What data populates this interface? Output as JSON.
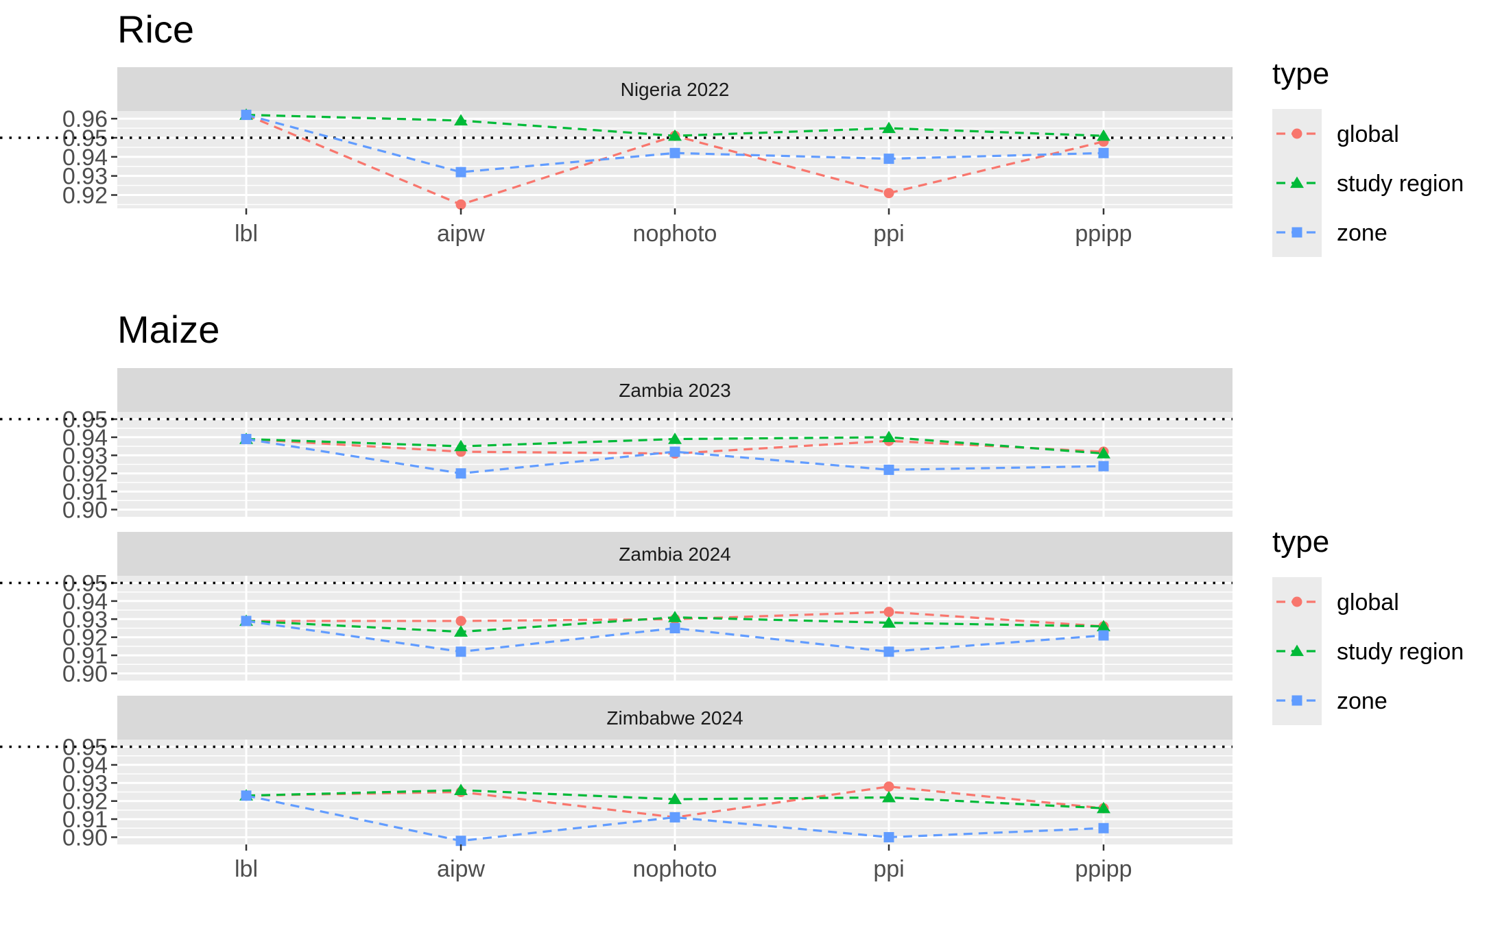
{
  "chart_data": [
    {
      "type": "line",
      "title": "Rice",
      "categories": [
        "lbl",
        "aipw",
        "nophoto",
        "ppi",
        "ppipp"
      ],
      "reference_line": 0.95,
      "legend": {
        "title": "type",
        "entries": [
          "global",
          "study region",
          "zone"
        ],
        "placement": "right"
      },
      "facets": [
        {
          "strip": "Nigeria 2022",
          "ylim": [
            0.913,
            0.964
          ],
          "yticks": [
            0.92,
            0.93,
            0.94,
            0.95,
            0.96
          ],
          "ytick_labels": [
            "0.92",
            "0.93",
            "0.94",
            "0.95",
            "0.96"
          ],
          "series": [
            {
              "name": "global",
              "values": [
                0.962,
                0.915,
                0.951,
                0.921,
                0.948
              ]
            },
            {
              "name": "study region",
              "values": [
                0.962,
                0.959,
                0.951,
                0.955,
                0.951
              ]
            },
            {
              "name": "zone",
              "values": [
                0.962,
                0.932,
                0.942,
                0.939,
                0.942
              ]
            }
          ]
        }
      ]
    },
    {
      "type": "line",
      "title": "Maize",
      "categories": [
        "lbl",
        "aipw",
        "nophoto",
        "ppi",
        "ppipp"
      ],
      "reference_line": 0.95,
      "legend": {
        "title": "type",
        "entries": [
          "global",
          "study region",
          "zone"
        ],
        "placement": "right"
      },
      "facets": [
        {
          "strip": "Zambia 2023",
          "ylim": [
            0.896,
            0.954
          ],
          "yticks": [
            0.9,
            0.91,
            0.92,
            0.93,
            0.94,
            0.95
          ],
          "ytick_labels": [
            "0.90",
            "0.91",
            "0.92",
            "0.93",
            "0.94",
            "0.95"
          ],
          "series": [
            {
              "name": "global",
              "values": [
                0.939,
                0.932,
                0.931,
                0.938,
                0.932
              ]
            },
            {
              "name": "study region",
              "values": [
                0.939,
                0.935,
                0.939,
                0.94,
                0.931
              ]
            },
            {
              "name": "zone",
              "values": [
                0.939,
                0.92,
                0.932,
                0.922,
                0.924
              ]
            }
          ]
        },
        {
          "strip": "Zambia 2024",
          "ylim": [
            0.896,
            0.954
          ],
          "yticks": [
            0.9,
            0.91,
            0.92,
            0.93,
            0.94,
            0.95
          ],
          "ytick_labels": [
            "0.90",
            "0.91",
            "0.92",
            "0.93",
            "0.94",
            "0.95"
          ],
          "series": [
            {
              "name": "global",
              "values": [
                0.929,
                0.929,
                0.93,
                0.934,
                0.926
              ]
            },
            {
              "name": "study region",
              "values": [
                0.929,
                0.923,
                0.931,
                0.928,
                0.926
              ]
            },
            {
              "name": "zone",
              "values": [
                0.929,
                0.912,
                0.925,
                0.912,
                0.921
              ]
            }
          ]
        },
        {
          "strip": "Zimbabwe 2024",
          "ylim": [
            0.896,
            0.954
          ],
          "yticks": [
            0.9,
            0.91,
            0.92,
            0.93,
            0.94,
            0.95
          ],
          "ytick_labels": [
            "0.90",
            "0.91",
            "0.92",
            "0.93",
            "0.94",
            "0.95"
          ],
          "series": [
            {
              "name": "global",
              "values": [
                0.923,
                0.925,
                0.911,
                0.928,
                0.916
              ]
            },
            {
              "name": "study region",
              "values": [
                0.923,
                0.926,
                0.921,
                0.922,
                0.916
              ]
            },
            {
              "name": "zone",
              "values": [
                0.923,
                0.898,
                0.911,
                0.9,
                0.905
              ]
            }
          ]
        }
      ]
    }
  ],
  "series_styles": [
    {
      "name": "global",
      "color": "#F8766D",
      "shape": "circle"
    },
    {
      "name": "study region",
      "color": "#00BA38",
      "shape": "triangle"
    },
    {
      "name": "zone",
      "color": "#619CFF",
      "shape": "square"
    }
  ],
  "colors": {
    "panel_bg": "#EBEBEB",
    "strip_bg": "#D9D9D9",
    "grid": "#FFFFFF",
    "reference_line": "#000000",
    "legend_key_bg": "#EBEBEB",
    "tick_text": "#4D4D4D"
  }
}
